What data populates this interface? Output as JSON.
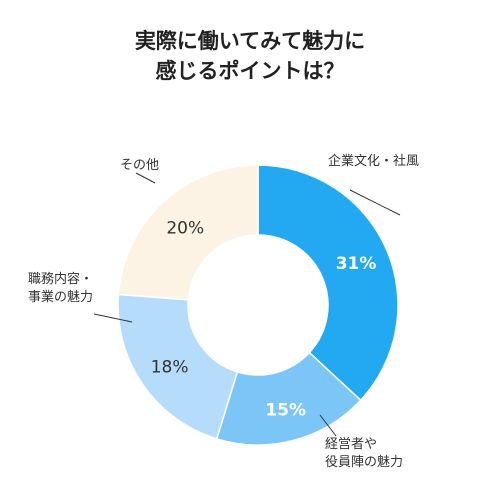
{
  "chart_data": {
    "type": "donut",
    "title_lines": [
      "実際に働いてみて魅力に",
      "感じるポイントは？"
    ],
    "slices": [
      {
        "label_lines": [
          "企業文化・社風"
        ],
        "value": 31,
        "value_label": "31%",
        "color": "#23a9f2",
        "value_color": "#ffffff"
      },
      {
        "label_lines": [
          "経営者や",
          "役員陣の魅力"
        ],
        "value": 15,
        "value_label": "15%",
        "color": "#7cc6f7",
        "value_color": "#ffffff"
      },
      {
        "label_lines": [
          "職務内容・",
          "事業の魅力"
        ],
        "value": 18,
        "value_label": "18%",
        "color": "#b5ddfb",
        "value_color": "#333333"
      },
      {
        "label_lines": [
          "その他"
        ],
        "value": 20,
        "value_label": "20%",
        "color": "#fdf3e4",
        "value_color": "#333333"
      }
    ],
    "leader_color": "#333333"
  }
}
